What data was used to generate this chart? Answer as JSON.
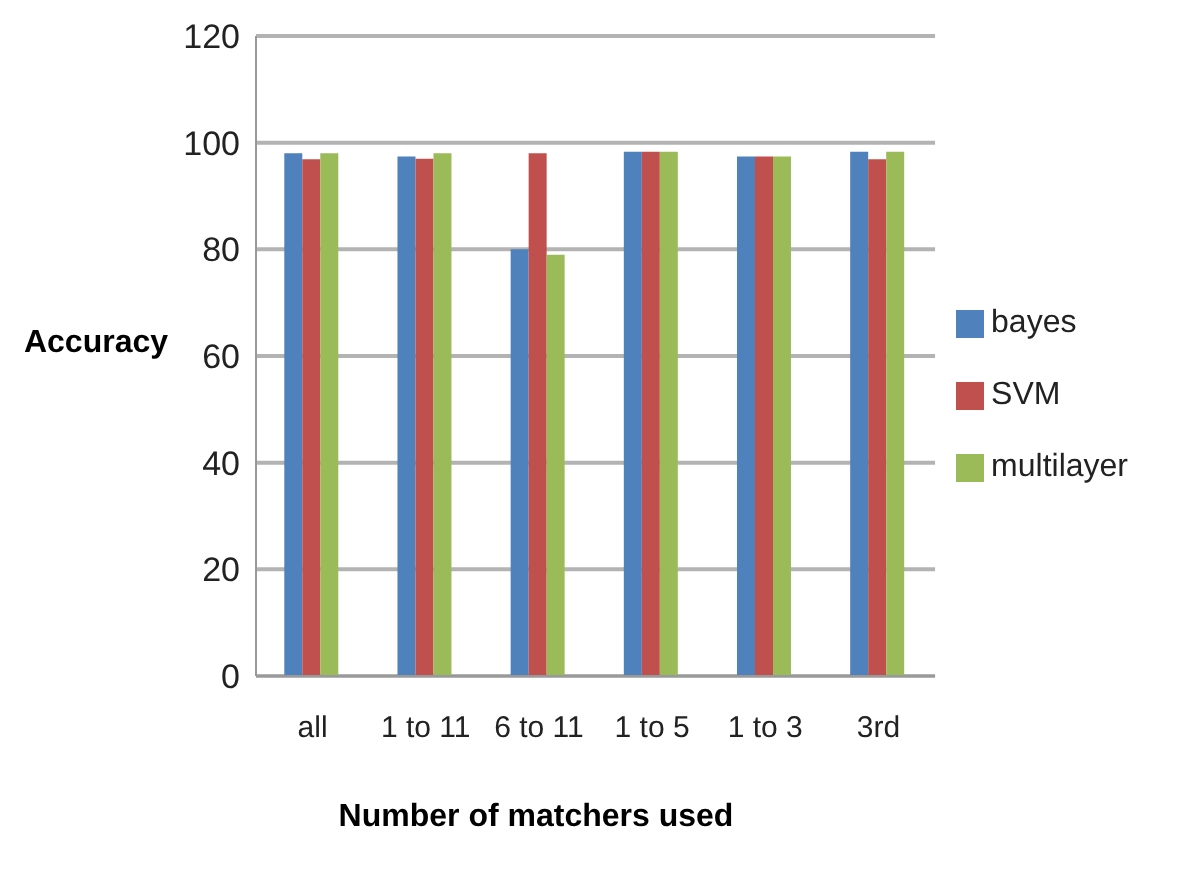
{
  "chart_data": {
    "type": "bar",
    "xlabel": "Number of matchers used",
    "ylabel": "Accuracy",
    "categories": [
      "all",
      "1 to 11",
      "6 to 11",
      "1 to 5",
      "1 to 3",
      "3rd"
    ],
    "series": [
      {
        "name": "bayes",
        "color": "#4f81bd",
        "values": [
          98,
          97.4,
          80,
          98.3,
          97.4,
          98.3
        ]
      },
      {
        "name": "SVM",
        "color": "#c0504d",
        "values": [
          96.9,
          97,
          98,
          98.3,
          97.4,
          96.9
        ]
      },
      {
        "name": "multilayer",
        "color": "#9bbb59",
        "values": [
          98,
          98,
          79,
          98.3,
          97.4,
          98.3
        ]
      }
    ],
    "ylim": [
      0,
      120
    ],
    "yticks": [
      0,
      20,
      40,
      60,
      80,
      100,
      120
    ],
    "grid": "y",
    "legend": "right"
  }
}
